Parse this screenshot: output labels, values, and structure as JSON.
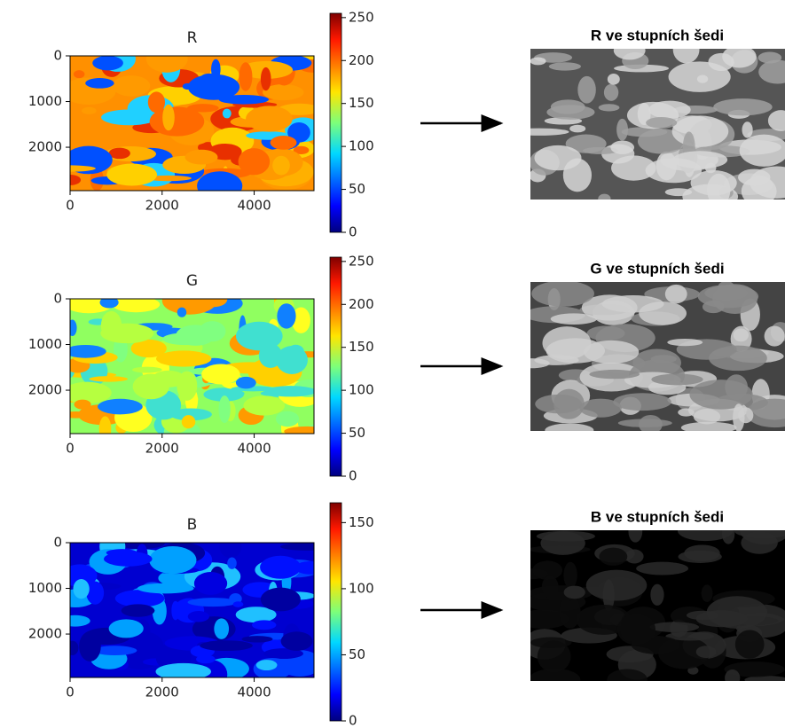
{
  "chart_data": [
    {
      "type": "image",
      "title": "R",
      "xlim": [
        0,
        5300
      ],
      "ylim": [
        0,
        2950
      ],
      "xticks": [
        0,
        2000,
        4000
      ],
      "yticks": [
        0,
        1000,
        2000
      ],
      "clim": [
        0,
        255
      ],
      "cticks": [
        0,
        50,
        100,
        150,
        200,
        250
      ]
    },
    {
      "type": "image",
      "title": "G",
      "xlim": [
        0,
        5300
      ],
      "ylim": [
        0,
        2950
      ],
      "xticks": [
        0,
        2000,
        4000
      ],
      "yticks": [
        0,
        1000,
        2000
      ],
      "clim": [
        0,
        255
      ],
      "cticks": [
        0,
        50,
        100,
        150,
        200,
        250
      ]
    },
    {
      "type": "image",
      "title": "B",
      "xlim": [
        0,
        5300
      ],
      "ylim": [
        0,
        2950
      ],
      "xticks": [
        0,
        2000,
        4000
      ],
      "yticks": [
        0,
        1000,
        2000
      ],
      "clim": [
        0,
        165
      ],
      "cticks": [
        0,
        50,
        100,
        150
      ]
    }
  ],
  "grayscale_panels": [
    {
      "title": "R ve stupních šedi"
    },
    {
      "title": "G ve stupních šedi"
    },
    {
      "title": "B ve stupních šedi"
    }
  ]
}
